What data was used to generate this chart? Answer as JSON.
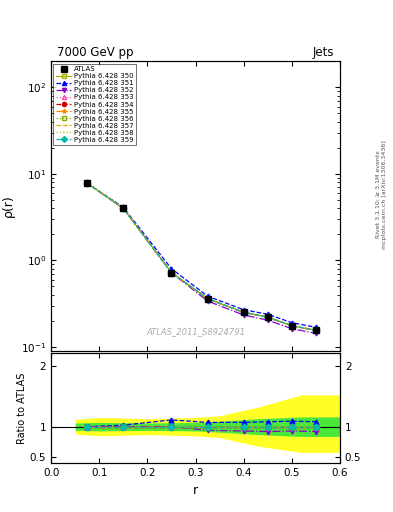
{
  "title": "7000 GeV pp",
  "title_right": "Jets",
  "xlabel": "r",
  "ylabel_main": "ρ(r)",
  "ylabel_ratio": "Ratio to ATLAS",
  "watermark": "ATLAS_2011_S8924791",
  "rivet_label": "Rivet 3.1.10; ≥ 3.1M events",
  "arxiv_label": "mcplots.cern.ch [arXiv:1306.3436]",
  "x_data": [
    0.075,
    0.15,
    0.25,
    0.325,
    0.4,
    0.45,
    0.5,
    0.55
  ],
  "atlas_y": [
    7.8,
    4.0,
    0.72,
    0.36,
    0.25,
    0.22,
    0.175,
    0.155
  ],
  "atlas_yerr": [
    0.3,
    0.15,
    0.025,
    0.012,
    0.01,
    0.009,
    0.008,
    0.007
  ],
  "series": [
    {
      "label": "Pythia 6.428 350",
      "color": "#aaaa00",
      "linestyle": "-",
      "marker": "s",
      "marker_fill": "none",
      "y": [
        7.8,
        4.0,
        0.72,
        0.36,
        0.25,
        0.22,
        0.175,
        0.155
      ],
      "ratio": [
        1.0,
        1.0,
        1.0,
        1.0,
        1.0,
        1.0,
        1.0,
        1.0
      ]
    },
    {
      "label": "Pythia 6.428 351",
      "color": "#0000ff",
      "linestyle": "--",
      "marker": "^",
      "marker_fill": "full",
      "y": [
        7.8,
        4.1,
        0.8,
        0.385,
        0.268,
        0.238,
        0.19,
        0.168
      ],
      "ratio": [
        1.0,
        1.025,
        1.11,
        1.07,
        1.07,
        1.08,
        1.09,
        1.08
      ]
    },
    {
      "label": "Pythia 6.428 352",
      "color": "#8800cc",
      "linestyle": "-.",
      "marker": "v",
      "marker_fill": "full",
      "y": [
        7.8,
        4.0,
        0.72,
        0.338,
        0.233,
        0.203,
        0.162,
        0.143
      ],
      "ratio": [
        1.0,
        1.0,
        1.0,
        0.94,
        0.93,
        0.92,
        0.93,
        0.92
      ]
    },
    {
      "label": "Pythia 6.428 353",
      "color": "#ff44aa",
      "linestyle": ":",
      "marker": "^",
      "marker_fill": "none",
      "y": [
        7.8,
        4.0,
        0.72,
        0.36,
        0.25,
        0.22,
        0.175,
        0.155
      ],
      "ratio": [
        1.0,
        1.0,
        1.0,
        1.0,
        1.0,
        1.0,
        1.0,
        1.0
      ]
    },
    {
      "label": "Pythia 6.428 354",
      "color": "#cc0000",
      "linestyle": "--",
      "marker": "o",
      "marker_fill": "full",
      "y": [
        7.8,
        4.0,
        0.72,
        0.36,
        0.25,
        0.22,
        0.175,
        0.155
      ],
      "ratio": [
        1.0,
        1.0,
        1.0,
        1.0,
        1.0,
        1.0,
        1.0,
        1.0
      ]
    },
    {
      "label": "Pythia 6.428 355",
      "color": "#ff8800",
      "linestyle": "-.",
      "marker": "*",
      "marker_fill": "full",
      "y": [
        7.8,
        4.0,
        0.72,
        0.36,
        0.25,
        0.22,
        0.175,
        0.155
      ],
      "ratio": [
        1.0,
        1.0,
        1.0,
        1.0,
        1.0,
        1.0,
        1.0,
        1.0
      ]
    },
    {
      "label": "Pythia 6.428 356",
      "color": "#88aa00",
      "linestyle": ":",
      "marker": "s",
      "marker_fill": "none",
      "y": [
        7.8,
        4.0,
        0.72,
        0.36,
        0.25,
        0.22,
        0.175,
        0.155
      ],
      "ratio": [
        1.0,
        1.0,
        1.0,
        1.0,
        1.0,
        1.0,
        1.0,
        1.0
      ]
    },
    {
      "label": "Pythia 6.428 357",
      "color": "#ddaa00",
      "linestyle": "--",
      "marker": "None",
      "marker_fill": "none",
      "y": [
        7.8,
        4.0,
        0.72,
        0.36,
        0.25,
        0.22,
        0.175,
        0.155
      ],
      "ratio": [
        1.0,
        1.0,
        1.0,
        1.0,
        1.0,
        1.0,
        1.0,
        1.0
      ]
    },
    {
      "label": "Pythia 6.428 358",
      "color": "#aacc00",
      "linestyle": ":",
      "marker": "None",
      "marker_fill": "none",
      "y": [
        7.8,
        4.0,
        0.72,
        0.36,
        0.25,
        0.22,
        0.175,
        0.155
      ],
      "ratio": [
        1.0,
        1.0,
        1.0,
        1.0,
        1.0,
        1.0,
        1.0,
        1.0
      ]
    },
    {
      "label": "Pythia 6.428 359",
      "color": "#00bbaa",
      "linestyle": "--",
      "marker": "D",
      "marker_fill": "full",
      "y": [
        7.8,
        4.0,
        0.72,
        0.36,
        0.25,
        0.22,
        0.175,
        0.155
      ],
      "ratio": [
        1.0,
        1.0,
        1.0,
        1.0,
        1.0,
        1.0,
        1.0,
        1.0
      ]
    }
  ],
  "band_yellow_x": [
    0.05,
    0.1,
    0.2,
    0.3,
    0.35,
    0.43,
    0.52,
    0.6
  ],
  "band_yellow_lo": [
    0.88,
    0.85,
    0.87,
    0.85,
    0.82,
    0.68,
    0.58,
    0.58
  ],
  "band_yellow_hi": [
    1.12,
    1.15,
    1.13,
    1.15,
    1.18,
    1.32,
    1.52,
    1.52
  ],
  "band_green_x": [
    0.05,
    0.1,
    0.2,
    0.3,
    0.35,
    0.43,
    0.52,
    0.6
  ],
  "band_green_lo": [
    0.94,
    0.93,
    0.94,
    0.93,
    0.91,
    0.87,
    0.84,
    0.84
  ],
  "band_green_hi": [
    1.06,
    1.07,
    1.06,
    1.07,
    1.09,
    1.13,
    1.16,
    1.16
  ],
  "xlim": [
    0,
    0.6
  ],
  "ylim_main": [
    0.09,
    200
  ],
  "ylim_ratio": [
    0.4,
    2.2
  ]
}
